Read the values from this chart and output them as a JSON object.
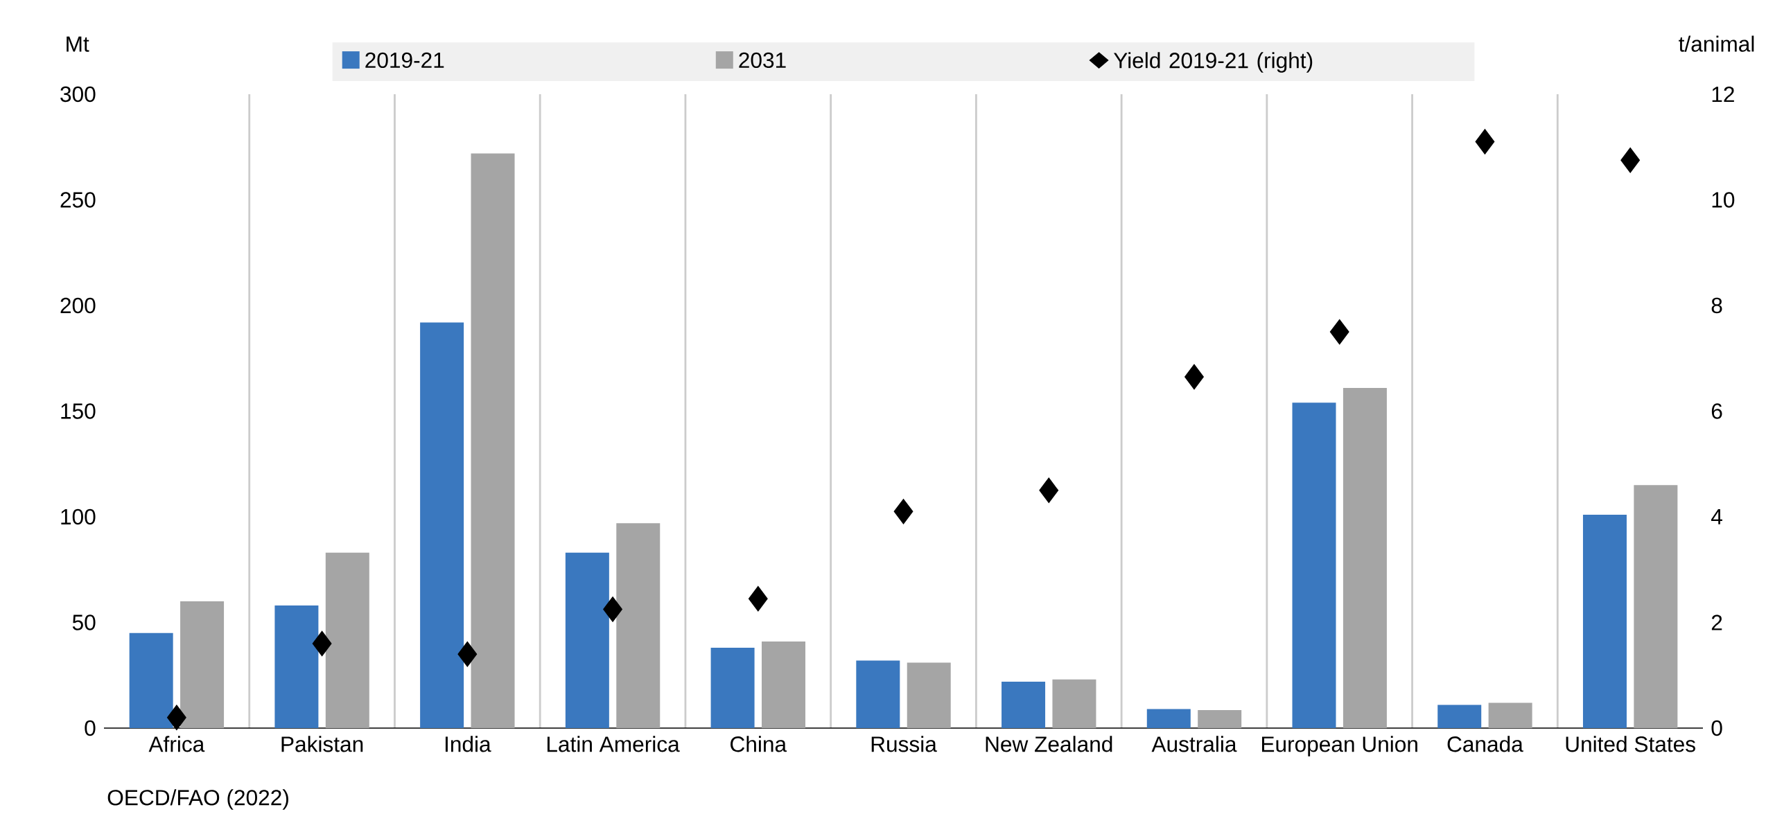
{
  "chart_data": {
    "type": "bar",
    "categories": [
      "Africa",
      "Pakistan",
      "India",
      "Latin America",
      "China",
      "Russia",
      "New Zealand",
      "Australia",
      "European Union",
      "Canada",
      "United States"
    ],
    "series": [
      {
        "name": "2019-21",
        "color": "#3a78bf",
        "values": [
          45,
          58,
          192,
          83,
          38,
          32,
          22,
          9,
          154,
          11,
          101
        ]
      },
      {
        "name": "2031",
        "color": "#a5a5a5",
        "values": [
          60,
          83,
          272,
          97,
          41,
          31,
          23,
          8.5,
          161,
          12,
          115
        ]
      },
      {
        "name": "Yield 2019-21 (right)",
        "type": "scatter",
        "axis": "y2",
        "marker": "diamond",
        "color": "#000000",
        "values": [
          0.2,
          1.6,
          1.4,
          2.25,
          2.45,
          4.1,
          4.5,
          6.65,
          7.5,
          11.1,
          10.75
        ]
      }
    ],
    "ylabel": "Mt",
    "y2label": "t/animal",
    "ylim": [
      0,
      300
    ],
    "yticks": [
      0,
      50,
      100,
      150,
      200,
      250,
      300
    ],
    "y2lim": [
      0,
      12
    ],
    "y2ticks": [
      0,
      2,
      4,
      6,
      8,
      10,
      12
    ],
    "grid": "x",
    "legend": "top",
    "annotations": [
      "OECD/FAO (2022)"
    ]
  }
}
